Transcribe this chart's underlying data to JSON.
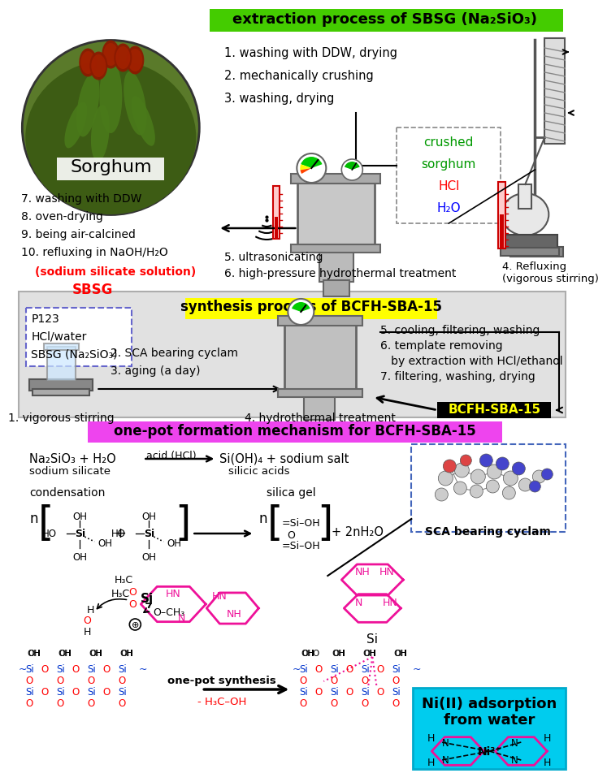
{
  "bg_color": "#ffffff",
  "section1_label": "extraction process of SBSG (Na₂SiO₃)",
  "section1_bg": "#44cc00",
  "section2_label": "synthesis process of BCFH-SBA-15",
  "section2_bg": "#ffff00",
  "section3_label": "one-pot formation mechanism for BCFH-SBA-15",
  "section3_bg": "#ee44ee",
  "sorghum_label": "Sorghum",
  "extraction_steps_right": [
    "1. washing with DDW, drying",
    "2. mechanically crushing",
    "3. washing, drying"
  ],
  "extraction_steps_left": [
    "7. washing with DDW",
    "8. oven-drying",
    "9. being air-calcined",
    "10. refluxing in NaOH/H₂O"
  ],
  "extraction_step10_part1": "(sodium silicate solution)",
  "extraction_step10_part2": "SBSG",
  "extraction_steps_middle": [
    "5. ultrasonicating",
    "6. high-pressure hydrothermal treatment"
  ],
  "refluxing_label": "4. Refluxing\n(vigorous stirring)",
  "crushed_box": [
    "crushed",
    "sorghum",
    "HCl",
    "H₂O"
  ],
  "crushed_colors": [
    "#009900",
    "#009900",
    "#ff0000",
    "#0000ff"
  ],
  "synthesis_reagents": [
    "P123",
    "HCl/water",
    "SBSG (Na₂SiO₃)"
  ],
  "synthesis_steps_left": [
    "2. SCA bearing cyclam",
    "3. aging (a day)"
  ],
  "synthesis_steps_right": [
    "5. cooling, filtering, washing",
    "6. template removing",
    "   by extraction with HCl/ethanol",
    "7. filtering, washing, drying"
  ],
  "vigorous_label": "1. vigorous stirring",
  "hydrothermal_label": "4. hydrothermal treatment",
  "bcfh_label": "BCFH-SBA-15",
  "mechanism_eq1_left": "Na₂SiO₃ + H₂O",
  "mechanism_eq1_sublabel": "sodium silicate",
  "mechanism_eq1_arrow_label": "acid (HCl)",
  "mechanism_eq1_right1": "Si(OH)₄ + sodium salt",
  "mechanism_eq1_right2": "silicic acids",
  "condensation_label": "condensation",
  "silica_gel_label": "silica gel",
  "sca_label": "SCA bearing cyclam",
  "ni_label_line1": "Ni(II) adsorption",
  "ni_label_line2": "from water",
  "ni_bg": "#00ccee",
  "one_pot_label": "one-pot synthesis",
  "methanol_label": "- H₃C–OH",
  "panel_bg": "#e0e0e0",
  "pink": "#ee1199",
  "blue": "#0033cc",
  "red": "#ff0000"
}
